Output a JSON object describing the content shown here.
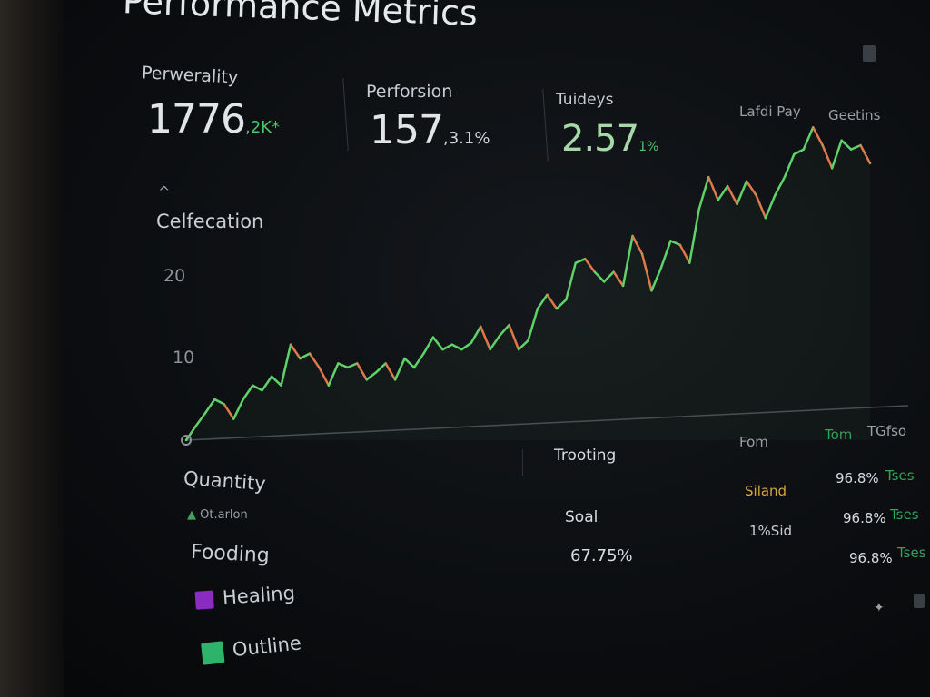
{
  "header": {
    "title": "Performance Metrics"
  },
  "kpis": [
    {
      "label": "Perwerality",
      "value": "1776",
      "sub": ",2K*",
      "sub_color": "#4cc46a"
    },
    {
      "label": "Perforsion",
      "value": "157",
      "sub": ",3.1%",
      "sub_color": "#d0d4d8"
    },
    {
      "label": "Tuideys",
      "value": "2.57",
      "sub": "1%",
      "sub_color": "#4cc46a"
    }
  ],
  "chart_header": {
    "left": "Lafdi Pay",
    "right": "Geetins"
  },
  "chart_data": {
    "type": "line",
    "title": "Celfecation",
    "xlabel": "",
    "ylabel": "",
    "ylim": [
      0,
      40
    ],
    "yticks": [
      "10",
      "20"
    ],
    "grid": false,
    "colors": {
      "up": "#5fd36a",
      "down": "#e0784a"
    },
    "values": [
      0,
      1.7,
      3.3,
      5,
      4.4,
      2.6,
      5,
      6.7,
      6.1,
      7.8,
      6.7,
      11.7,
      10,
      10.6,
      8.9,
      6.7,
      9.4,
      8.9,
      9.4,
      7.4,
      8.3,
      9.4,
      7.4,
      10,
      8.9,
      10.6,
      12.6,
      11.1,
      11.7,
      11.1,
      11.9,
      13.9,
      11.1,
      12.8,
      14.1,
      11.1,
      12.2,
      16.1,
      17.8,
      16.1,
      17.2,
      21.7,
      22.2,
      20.6,
      19.4,
      20.6,
      18.9,
      25,
      22.8,
      18.3,
      21.1,
      24.4,
      23.9,
      21.7,
      28.3,
      32.2,
      29.4,
      31.1,
      28.9,
      31.7,
      30,
      27.2,
      30,
      32.2,
      35,
      35.6,
      38.3,
      36.1,
      33.3,
      36.7,
      35.6,
      36.1,
      33.9
    ]
  },
  "legend": {
    "heading": "Quantity",
    "note": "Ot.arlon",
    "group": "Fooding",
    "items": [
      {
        "label": "Healing",
        "color": "#8a2bc2"
      },
      {
        "label": "Outline",
        "color": "#2fb36a"
      }
    ]
  },
  "middle": {
    "heading": "Trooting",
    "label": "Soal",
    "value": "67.75%"
  },
  "table": {
    "headers": [
      "Fom",
      "Tom",
      "TGfso"
    ],
    "status": "Siland",
    "status_color": "#d4a93a",
    "sub": "1%Sid",
    "rows": [
      {
        "value": "96.8%",
        "tag": "Tses"
      },
      {
        "value": "96.8%",
        "tag": "Tses"
      },
      {
        "value": "96.8%",
        "tag": "Tses"
      }
    ]
  }
}
